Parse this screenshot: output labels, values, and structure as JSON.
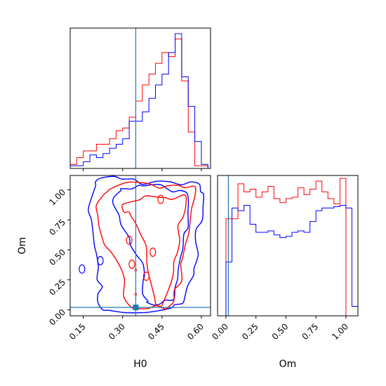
{
  "chart_data": [
    {
      "type": "histogram",
      "panel": "H0 marginal",
      "xlim": [
        0.1,
        0.635
      ],
      "truth_line_x": 0.35,
      "bins": [
        0.1,
        0.125,
        0.15,
        0.175,
        0.2,
        0.225,
        0.25,
        0.275,
        0.3,
        0.325,
        0.35,
        0.375,
        0.4,
        0.425,
        0.45,
        0.475,
        0.5,
        0.525,
        0.55,
        0.575,
        0.6,
        0.625
      ],
      "series": [
        {
          "color": "#ff0000",
          "values": [
            0.03,
            0.08,
            0.13,
            0.13,
            0.18,
            0.18,
            0.22,
            0.28,
            0.3,
            0.38,
            0.5,
            0.62,
            0.7,
            0.78,
            0.86,
            0.83,
            0.96,
            0.65,
            0.27,
            0.02,
            0.02
          ]
        },
        {
          "color": "#0000ff",
          "values": [
            0.02,
            0.02,
            0.05,
            0.1,
            0.08,
            0.11,
            0.15,
            0.18,
            0.22,
            0.35,
            0.35,
            0.42,
            0.52,
            0.62,
            0.7,
            0.86,
            1.0,
            0.68,
            0.46,
            0.2,
            0.03
          ]
        }
      ]
    },
    {
      "type": "contour",
      "panel": "H0 vs Om joint",
      "xlabel": "H0",
      "ylabel": "Om",
      "xlim": [
        0.1,
        0.635
      ],
      "ylim": [
        -0.05,
        1.12
      ],
      "xticks": [
        "0.15",
        "0.30",
        "0.45",
        "0.60"
      ],
      "yticks": [
        "0.00",
        "0.25",
        "0.50",
        "0.75",
        "1.00"
      ],
      "xtick_values": [
        0.15,
        0.3,
        0.45,
        0.6
      ],
      "ytick_values": [
        0.0,
        0.25,
        0.5,
        0.75,
        1.0
      ],
      "truth": {
        "H0": 0.35,
        "Om": 0.02
      },
      "series": [
        {
          "color": "#0000ff",
          "contours": [
            [
              [
                0.19,
                1.08
              ],
              [
                0.26,
                1.1
              ],
              [
                0.34,
                1.08
              ],
              [
                0.43,
                1.06
              ],
              [
                0.53,
                1.05
              ],
              [
                0.6,
                1.06
              ],
              [
                0.61,
                0.95
              ],
              [
                0.6,
                0.75
              ],
              [
                0.58,
                0.55
              ],
              [
                0.57,
                0.35
              ],
              [
                0.55,
                0.2
              ],
              [
                0.53,
                0.05
              ],
              [
                0.48,
                0.0
              ],
              [
                0.35,
                -0.01
              ],
              [
                0.24,
                0.0
              ],
              [
                0.21,
                0.05
              ],
              [
                0.22,
                0.2
              ],
              [
                0.2,
                0.35
              ],
              [
                0.2,
                0.55
              ],
              [
                0.18,
                0.75
              ],
              [
                0.18,
                0.95
              ]
            ],
            [
              [
                0.3,
                1.02
              ],
              [
                0.36,
                1.04
              ],
              [
                0.42,
                1.03
              ],
              [
                0.49,
                1.0
              ],
              [
                0.55,
                0.98
              ],
              [
                0.55,
                0.8
              ],
              [
                0.53,
                0.62
              ],
              [
                0.52,
                0.42
              ],
              [
                0.51,
                0.25
              ],
              [
                0.49,
                0.1
              ],
              [
                0.45,
                0.04
              ],
              [
                0.4,
                0.05
              ],
              [
                0.38,
                0.15
              ],
              [
                0.38,
                0.3
              ],
              [
                0.35,
                0.45
              ],
              [
                0.32,
                0.62
              ],
              [
                0.28,
                0.8
              ],
              [
                0.27,
                0.95
              ]
            ]
          ]
        },
        {
          "color": "#ff0000",
          "contours": [
            [
              [
                0.26,
                1.02
              ],
              [
                0.35,
                1.05
              ],
              [
                0.44,
                1.02
              ],
              [
                0.52,
                1.04
              ],
              [
                0.57,
                1.02
              ],
              [
                0.57,
                0.85
              ],
              [
                0.55,
                0.65
              ],
              [
                0.53,
                0.45
              ],
              [
                0.52,
                0.25
              ],
              [
                0.5,
                0.08
              ],
              [
                0.46,
                0.02
              ],
              [
                0.4,
                0.0
              ],
              [
                0.34,
                0.01
              ],
              [
                0.31,
                0.12
              ],
              [
                0.3,
                0.3
              ],
              [
                0.26,
                0.48
              ],
              [
                0.22,
                0.62
              ],
              [
                0.2,
                0.8
              ],
              [
                0.22,
                0.95
              ]
            ],
            [
              [
                0.3,
                0.88
              ],
              [
                0.36,
                0.92
              ],
              [
                0.41,
                0.95
              ],
              [
                0.47,
                0.93
              ],
              [
                0.53,
                0.95
              ],
              [
                0.53,
                0.78
              ],
              [
                0.51,
                0.58
              ],
              [
                0.5,
                0.4
              ],
              [
                0.48,
                0.22
              ],
              [
                0.46,
                0.06
              ],
              [
                0.43,
                0.05
              ],
              [
                0.42,
                0.2
              ],
              [
                0.4,
                0.38
              ],
              [
                0.38,
                0.55
              ],
              [
                0.35,
                0.7
              ],
              [
                0.32,
                0.8
              ]
            ]
          ]
        }
      ]
    },
    {
      "type": "histogram",
      "panel": "Om marginal",
      "xlabel": "Om",
      "xlim": [
        -0.07,
        1.1
      ],
      "xticks": [
        "0.00",
        "0.25",
        "0.50",
        "0.75",
        "1.00"
      ],
      "xtick_values": [
        0.0,
        0.25,
        0.5,
        0.75,
        1.0
      ],
      "truth_line_x": 0.02,
      "bins": [
        -0.05,
        0.0,
        0.05,
        0.1,
        0.15,
        0.2,
        0.25,
        0.3,
        0.35,
        0.4,
        0.45,
        0.5,
        0.55,
        0.6,
        0.65,
        0.7,
        0.75,
        0.8,
        0.85,
        0.9,
        0.95,
        1.0,
        1.05,
        1.1
      ],
      "series": [
        {
          "color": "#ff0000",
          "values": [
            0.0,
            0.72,
            0.72,
            0.98,
            0.92,
            0.94,
            0.88,
            0.92,
            0.96,
            0.87,
            0.84,
            0.87,
            0.88,
            0.95,
            0.9,
            0.94,
            1.0,
            0.92,
            0.87,
            0.83,
            1.02,
            0.0,
            0.0
          ]
        },
        {
          "color": "#0000ff",
          "values": [
            0.0,
            0.4,
            0.8,
            0.78,
            0.82,
            0.68,
            0.62,
            0.62,
            0.63,
            0.6,
            0.58,
            0.59,
            0.62,
            0.63,
            0.62,
            0.7,
            0.78,
            0.8,
            0.8,
            0.81,
            0.82,
            0.8,
            0.07
          ]
        }
      ]
    }
  ]
}
